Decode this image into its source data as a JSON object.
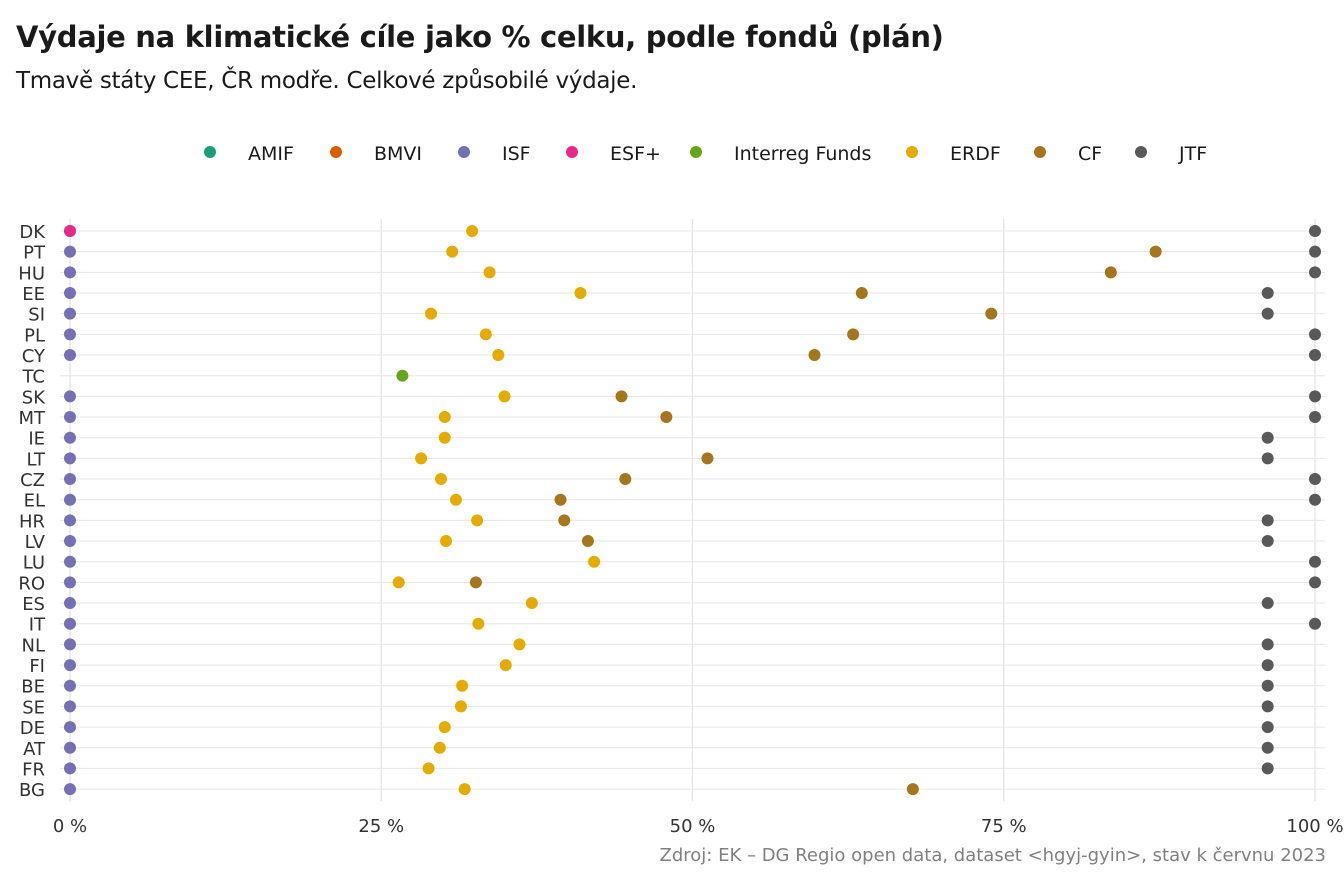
{
  "chart_data": {
    "type": "scatter",
    "title": "Výdaje na klimatické cíle jako % celku, podle fondů (plán)",
    "subtitle": "Tmavě státy CEE, ČR modře. Celkové způsobilé výdaje.",
    "caption": "Zdroj: EK – DG Regio open data, dataset <hgyj-gyin>, stav k červnu 2023",
    "legend_position": "top",
    "grid": true,
    "xlim": [
      0,
      1
    ],
    "x_ticks": [
      0,
      0.25,
      0.5,
      0.75,
      1
    ],
    "x_tick_labels": [
      "0 %",
      "25 %",
      "50 %",
      "75 %",
      "100 %"
    ],
    "categories": [
      "DK",
      "PT",
      "HU",
      "EE",
      "SI",
      "PL",
      "CY",
      "TC",
      "SK",
      "MT",
      "IE",
      "LT",
      "CZ",
      "EL",
      "HR",
      "LV",
      "LU",
      "RO",
      "ES",
      "IT",
      "NL",
      "FI",
      "BE",
      "SE",
      "DE",
      "AT",
      "FR",
      "BG"
    ],
    "series": [
      {
        "name": "AMIF",
        "color": "#1b9e77",
        "points": []
      },
      {
        "name": "BMVI",
        "color": "#d95f02",
        "points": []
      },
      {
        "name": "ISF",
        "color": "#7570b3",
        "points": [
          {
            "y": "DK",
            "x": 0
          },
          {
            "y": "PT",
            "x": 0
          },
          {
            "y": "HU",
            "x": 0
          },
          {
            "y": "EE",
            "x": 0
          },
          {
            "y": "SI",
            "x": 0
          },
          {
            "y": "PL",
            "x": 0
          },
          {
            "y": "CY",
            "x": 0
          },
          {
            "y": "SK",
            "x": 0
          },
          {
            "y": "MT",
            "x": 0
          },
          {
            "y": "IE",
            "x": 0
          },
          {
            "y": "LT",
            "x": 0
          },
          {
            "y": "CZ",
            "x": 0
          },
          {
            "y": "EL",
            "x": 0
          },
          {
            "y": "HR",
            "x": 0
          },
          {
            "y": "LV",
            "x": 0
          },
          {
            "y": "LU",
            "x": 0
          },
          {
            "y": "RO",
            "x": 0
          },
          {
            "y": "ES",
            "x": 0
          },
          {
            "y": "IT",
            "x": 0
          },
          {
            "y": "NL",
            "x": 0
          },
          {
            "y": "FI",
            "x": 0
          },
          {
            "y": "BE",
            "x": 0
          },
          {
            "y": "SE",
            "x": 0
          },
          {
            "y": "DE",
            "x": 0
          },
          {
            "y": "AT",
            "x": 0
          },
          {
            "y": "FR",
            "x": 0
          },
          {
            "y": "BG",
            "x": 0
          }
        ]
      },
      {
        "name": "ESF+",
        "color": "#e7298a",
        "points": [
          {
            "y": "DK",
            "x": 0
          }
        ]
      },
      {
        "name": "Interreg Funds",
        "color": "#66a61e",
        "points": [
          {
            "y": "TC",
            "x": 0.267
          }
        ]
      },
      {
        "name": "ERDF",
        "color": "#e6ab02",
        "points": [
          {
            "y": "DK",
            "x": 0.323
          },
          {
            "y": "PT",
            "x": 0.307
          },
          {
            "y": "HU",
            "x": 0.337
          },
          {
            "y": "EE",
            "x": 0.41
          },
          {
            "y": "SI",
            "x": 0.29
          },
          {
            "y": "PL",
            "x": 0.334
          },
          {
            "y": "CY",
            "x": 0.344
          },
          {
            "y": "SK",
            "x": 0.349
          },
          {
            "y": "MT",
            "x": 0.301
          },
          {
            "y": "IE",
            "x": 0.301
          },
          {
            "y": "LT",
            "x": 0.282
          },
          {
            "y": "CZ",
            "x": 0.298
          },
          {
            "y": "EL",
            "x": 0.31
          },
          {
            "y": "HR",
            "x": 0.327
          },
          {
            "y": "LV",
            "x": 0.302
          },
          {
            "y": "LU",
            "x": 0.421
          },
          {
            "y": "RO",
            "x": 0.264
          },
          {
            "y": "ES",
            "x": 0.371
          },
          {
            "y": "IT",
            "x": 0.328
          },
          {
            "y": "NL",
            "x": 0.361
          },
          {
            "y": "FI",
            "x": 0.35
          },
          {
            "y": "BE",
            "x": 0.315
          },
          {
            "y": "SE",
            "x": 0.314
          },
          {
            "y": "DE",
            "x": 0.301
          },
          {
            "y": "AT",
            "x": 0.297
          },
          {
            "y": "FR",
            "x": 0.288
          },
          {
            "y": "BG",
            "x": 0.317
          }
        ]
      },
      {
        "name": "CF",
        "color": "#a6761d",
        "points": [
          {
            "y": "PT",
            "x": 0.872
          },
          {
            "y": "HU",
            "x": 0.836
          },
          {
            "y": "EE",
            "x": 0.636
          },
          {
            "y": "SI",
            "x": 0.74
          },
          {
            "y": "PL",
            "x": 0.629
          },
          {
            "y": "CY",
            "x": 0.598
          },
          {
            "y": "SK",
            "x": 0.443
          },
          {
            "y": "MT",
            "x": 0.479
          },
          {
            "y": "LT",
            "x": 0.512
          },
          {
            "y": "CZ",
            "x": 0.446
          },
          {
            "y": "EL",
            "x": 0.394
          },
          {
            "y": "HR",
            "x": 0.397
          },
          {
            "y": "LV",
            "x": 0.416
          },
          {
            "y": "RO",
            "x": 0.326
          },
          {
            "y": "BG",
            "x": 0.677
          }
        ]
      },
      {
        "name": "JTF",
        "color": "#595959",
        "points": [
          {
            "y": "DK",
            "x": 1.0
          },
          {
            "y": "PT",
            "x": 1.0
          },
          {
            "y": "HU",
            "x": 1.0
          },
          {
            "y": "EE",
            "x": 0.962
          },
          {
            "y": "SI",
            "x": 0.962
          },
          {
            "y": "PL",
            "x": 1.0
          },
          {
            "y": "CY",
            "x": 1.0
          },
          {
            "y": "SK",
            "x": 1.0
          },
          {
            "y": "MT",
            "x": 1.0
          },
          {
            "y": "IE",
            "x": 0.962
          },
          {
            "y": "LT",
            "x": 0.962
          },
          {
            "y": "CZ",
            "x": 1.0
          },
          {
            "y": "EL",
            "x": 1.0
          },
          {
            "y": "HR",
            "x": 0.962
          },
          {
            "y": "LV",
            "x": 0.962
          },
          {
            "y": "LU",
            "x": 1.0
          },
          {
            "y": "RO",
            "x": 1.0
          },
          {
            "y": "ES",
            "x": 0.962
          },
          {
            "y": "IT",
            "x": 1.0
          },
          {
            "y": "NL",
            "x": 0.962
          },
          {
            "y": "FI",
            "x": 0.962
          },
          {
            "y": "BE",
            "x": 0.962
          },
          {
            "y": "SE",
            "x": 0.962
          },
          {
            "y": "DE",
            "x": 0.962
          },
          {
            "y": "AT",
            "x": 0.962
          },
          {
            "y": "FR",
            "x": 0.962
          }
        ]
      }
    ]
  }
}
